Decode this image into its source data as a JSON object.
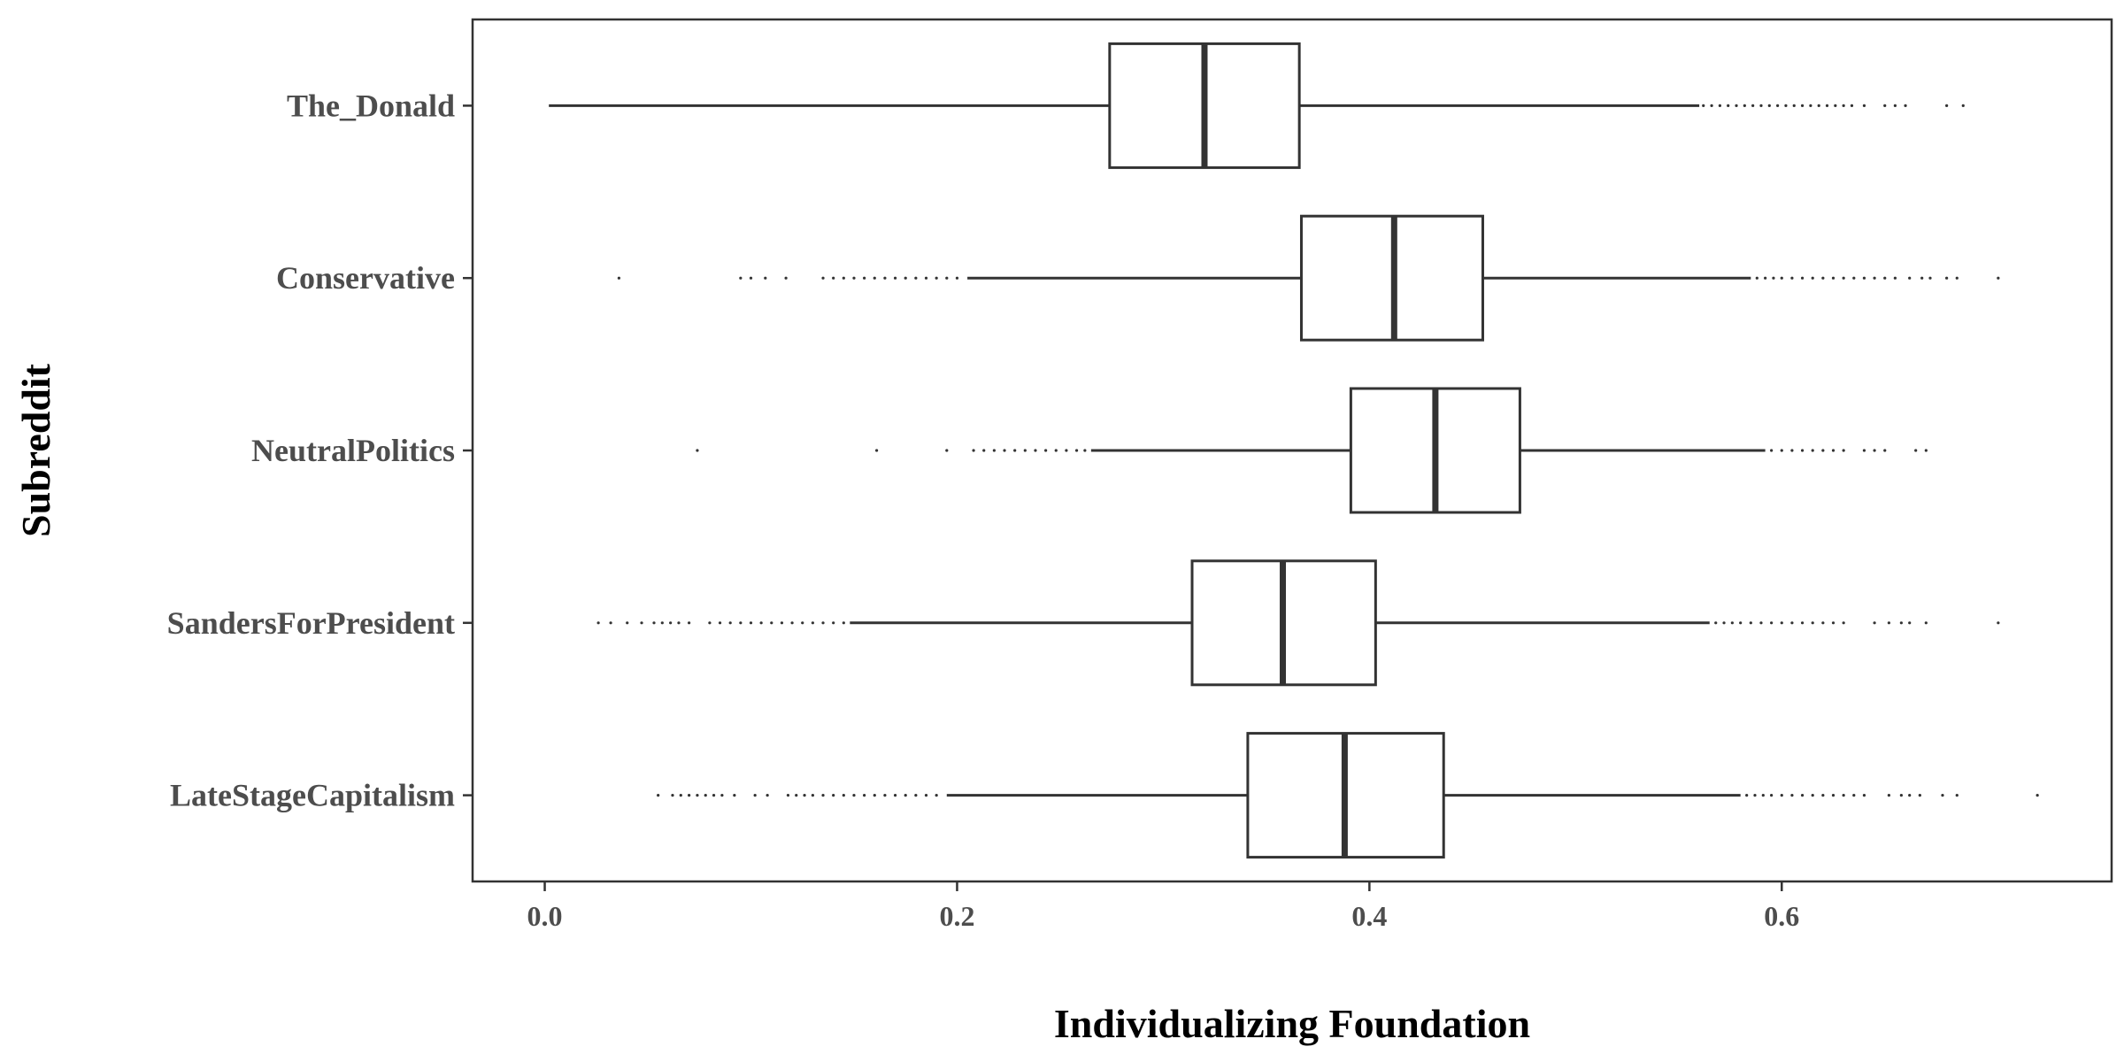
{
  "chart_data": {
    "type": "boxplot",
    "orientation": "horizontal",
    "xlabel": "Individualizing Foundation",
    "ylabel": "Subreddit",
    "xlim": [
      -0.035,
      0.76
    ],
    "xticks": [
      0.0,
      0.2,
      0.4,
      0.6
    ],
    "xtick_labels": [
      "0.0",
      "0.2",
      "0.4",
      "0.6"
    ],
    "grid": false,
    "legend": "none",
    "colors": {
      "box_stroke": "#333333",
      "box_fill": "#ffffff",
      "panel_border": "#333333",
      "tick_text": "#4d4d4d",
      "title_text": "#000000"
    },
    "categories": [
      "The_Donald",
      "Conservative",
      "NeutralPolitics",
      "SandersForPresident",
      "LateStageCapitalism"
    ],
    "boxes": [
      {
        "name": "The_Donald",
        "whisker_low": 0.002,
        "q1": 0.274,
        "median": 0.32,
        "q3": 0.366,
        "whisker_high": 0.56,
        "outliers": [
          0.562,
          0.566,
          0.57,
          0.574,
          0.578,
          0.582,
          0.586,
          0.59,
          0.594,
          0.598,
          0.602,
          0.606,
          0.61,
          0.614,
          0.618,
          0.622,
          0.626,
          0.63,
          0.634,
          0.64,
          0.65,
          0.655,
          0.66,
          0.68,
          0.688
        ]
      },
      {
        "name": "Conservative",
        "whisker_low": 0.205,
        "q1": 0.367,
        "median": 0.412,
        "q3": 0.455,
        "whisker_high": 0.585,
        "outliers": [
          0.036,
          0.095,
          0.1,
          0.107,
          0.117,
          0.135,
          0.14,
          0.145,
          0.15,
          0.155,
          0.16,
          0.165,
          0.17,
          0.175,
          0.18,
          0.185,
          0.19,
          0.195,
          0.2,
          0.588,
          0.592,
          0.596,
          0.6,
          0.605,
          0.61,
          0.615,
          0.62,
          0.625,
          0.63,
          0.635,
          0.64,
          0.645,
          0.65,
          0.655,
          0.662,
          0.668,
          0.672,
          0.68,
          0.685,
          0.705
        ]
      },
      {
        "name": "NeutralPolitics",
        "whisker_low": 0.265,
        "q1": 0.391,
        "median": 0.432,
        "q3": 0.473,
        "whisker_high": 0.592,
        "outliers": [
          0.074,
          0.161,
          0.195,
          0.208,
          0.213,
          0.218,
          0.223,
          0.228,
          0.233,
          0.238,
          0.243,
          0.248,
          0.253,
          0.258,
          0.262,
          0.595,
          0.6,
          0.605,
          0.61,
          0.615,
          0.62,
          0.625,
          0.63,
          0.64,
          0.645,
          0.65,
          0.665,
          0.67
        ]
      },
      {
        "name": "SandersForPresident",
        "whisker_low": 0.148,
        "q1": 0.314,
        "median": 0.358,
        "q3": 0.403,
        "whisker_high": 0.565,
        "outliers": [
          0.026,
          0.032,
          0.04,
          0.047,
          0.053,
          0.057,
          0.061,
          0.065,
          0.07,
          0.08,
          0.085,
          0.09,
          0.095,
          0.1,
          0.105,
          0.11,
          0.115,
          0.12,
          0.125,
          0.13,
          0.135,
          0.14,
          0.145,
          0.568,
          0.572,
          0.576,
          0.58,
          0.585,
          0.59,
          0.595,
          0.6,
          0.605,
          0.61,
          0.615,
          0.62,
          0.625,
          0.63,
          0.645,
          0.652,
          0.658,
          0.662,
          0.67,
          0.705
        ]
      },
      {
        "name": "LateStageCapitalism",
        "whisker_low": 0.195,
        "q1": 0.341,
        "median": 0.388,
        "q3": 0.436,
        "whisker_high": 0.58,
        "outliers": [
          0.055,
          0.062,
          0.066,
          0.07,
          0.074,
          0.078,
          0.082,
          0.086,
          0.092,
          0.102,
          0.108,
          0.118,
          0.122,
          0.126,
          0.13,
          0.135,
          0.14,
          0.145,
          0.15,
          0.155,
          0.16,
          0.165,
          0.17,
          0.175,
          0.18,
          0.185,
          0.19,
          0.583,
          0.587,
          0.591,
          0.595,
          0.6,
          0.605,
          0.61,
          0.615,
          0.62,
          0.625,
          0.63,
          0.635,
          0.64,
          0.652,
          0.658,
          0.662,
          0.667,
          0.678,
          0.685,
          0.724
        ]
      }
    ]
  }
}
